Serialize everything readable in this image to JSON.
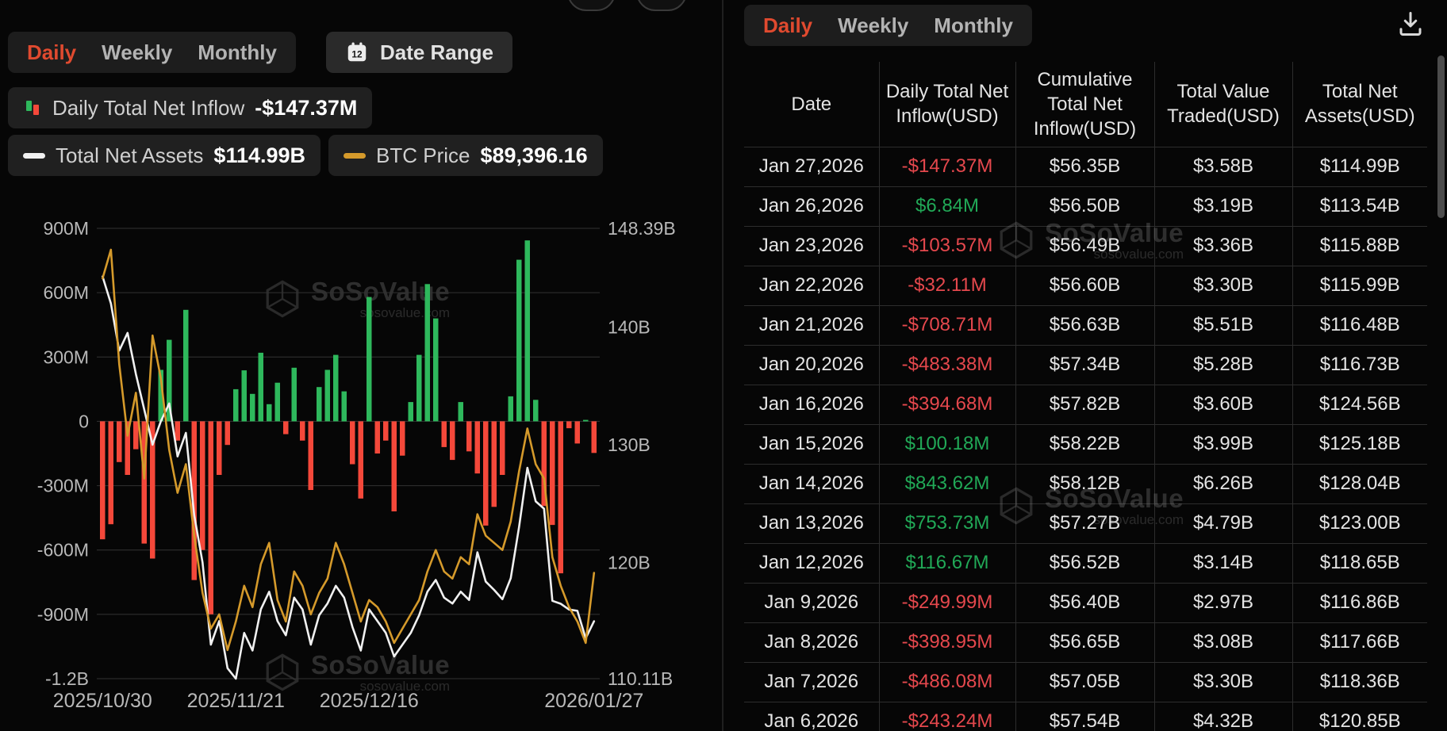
{
  "colors": {
    "accent_red": "#e04a2f",
    "positive_green": "#2eb85c",
    "negative_red": "#f4483a",
    "table_positive": "#21a957",
    "table_negative": "#e5484d",
    "btc_line": "#d59a2b",
    "assets_line": "#f0f0f0",
    "grid": "#333333",
    "axis_text": "#b8b8b8"
  },
  "left_panel": {
    "tabs": [
      {
        "label": "Daily",
        "active": true
      },
      {
        "label": "Weekly",
        "active": false
      },
      {
        "label": "Monthly",
        "active": false
      }
    ],
    "date_range": {
      "label": "Date Range",
      "icon": "calendar-icon"
    },
    "legend": {
      "inflow": {
        "icon": "bar-updown-icon",
        "label": "Daily Total Net Inflow",
        "value": "-$147.37M"
      },
      "assets": {
        "icon": "white-line-icon",
        "label": "Total Net Assets",
        "value": "$114.99B"
      },
      "btc": {
        "icon": "orange-line-icon",
        "label": "BTC Price",
        "value": "$89,396.16"
      }
    },
    "watermark": {
      "name": "SoSoValue",
      "domain": "sosovalue.com"
    }
  },
  "right_panel": {
    "tabs": [
      {
        "label": "Daily",
        "active": true
      },
      {
        "label": "Weekly",
        "active": false
      },
      {
        "label": "Monthly",
        "active": false
      }
    ],
    "download_icon": "download-icon",
    "table": {
      "headers": [
        "Date",
        "Daily Total Net Inflow(USD)",
        "Cumulative Total Net Inflow(USD)",
        "Total Value Traded(USD)",
        "Total Net Assets(USD)"
      ],
      "rows": [
        {
          "date": "Jan 27,2026",
          "daily_inflow": "-$147.37M",
          "cumulative_inflow": "$56.35B",
          "value_traded": "$3.58B",
          "net_assets": "$114.99B"
        },
        {
          "date": "Jan 26,2026",
          "daily_inflow": "$6.84M",
          "cumulative_inflow": "$56.50B",
          "value_traded": "$3.19B",
          "net_assets": "$113.54B"
        },
        {
          "date": "Jan 23,2026",
          "daily_inflow": "-$103.57M",
          "cumulative_inflow": "$56.49B",
          "value_traded": "$3.36B",
          "net_assets": "$115.88B"
        },
        {
          "date": "Jan 22,2026",
          "daily_inflow": "-$32.11M",
          "cumulative_inflow": "$56.60B",
          "value_traded": "$3.30B",
          "net_assets": "$115.99B"
        },
        {
          "date": "Jan 21,2026",
          "daily_inflow": "-$708.71M",
          "cumulative_inflow": "$56.63B",
          "value_traded": "$5.51B",
          "net_assets": "$116.48B"
        },
        {
          "date": "Jan 20,2026",
          "daily_inflow": "-$483.38M",
          "cumulative_inflow": "$57.34B",
          "value_traded": "$5.28B",
          "net_assets": "$116.73B"
        },
        {
          "date": "Jan 16,2026",
          "daily_inflow": "-$394.68M",
          "cumulative_inflow": "$57.82B",
          "value_traded": "$3.60B",
          "net_assets": "$124.56B"
        },
        {
          "date": "Jan 15,2026",
          "daily_inflow": "$100.18M",
          "cumulative_inflow": "$58.22B",
          "value_traded": "$3.99B",
          "net_assets": "$125.18B"
        },
        {
          "date": "Jan 14,2026",
          "daily_inflow": "$843.62M",
          "cumulative_inflow": "$58.12B",
          "value_traded": "$6.26B",
          "net_assets": "$128.04B"
        },
        {
          "date": "Jan 13,2026",
          "daily_inflow": "$753.73M",
          "cumulative_inflow": "$57.27B",
          "value_traded": "$4.79B",
          "net_assets": "$123.00B"
        },
        {
          "date": "Jan 12,2026",
          "daily_inflow": "$116.67M",
          "cumulative_inflow": "$56.52B",
          "value_traded": "$3.14B",
          "net_assets": "$118.65B"
        },
        {
          "date": "Jan 9,2026",
          "daily_inflow": "-$249.99M",
          "cumulative_inflow": "$56.40B",
          "value_traded": "$2.97B",
          "net_assets": "$116.86B"
        },
        {
          "date": "Jan 8,2026",
          "daily_inflow": "-$398.95M",
          "cumulative_inflow": "$56.65B",
          "value_traded": "$3.08B",
          "net_assets": "$117.66B"
        },
        {
          "date": "Jan 7,2026",
          "daily_inflow": "-$486.08M",
          "cumulative_inflow": "$57.05B",
          "value_traded": "$3.30B",
          "net_assets": "$118.36B"
        },
        {
          "date": "Jan 6,2026",
          "daily_inflow": "-$243.24M",
          "cumulative_inflow": "$57.54B",
          "value_traded": "$4.32B",
          "net_assets": "$120.85B"
        }
      ]
    }
  },
  "chart_data": {
    "type": "bar",
    "subtype": "combo-bar-two-lines",
    "x": [
      "2025/10/30",
      "2025/10/31",
      "2025/11/03",
      "2025/11/04",
      "2025/11/05",
      "2025/11/06",
      "2025/11/07",
      "2025/11/10",
      "2025/11/11",
      "2025/11/12",
      "2025/11/13",
      "2025/11/14",
      "2025/11/17",
      "2025/11/18",
      "2025/11/19",
      "2025/11/20",
      "2025/11/21",
      "2025/11/24",
      "2025/11/25",
      "2025/11/26",
      "2025/11/28",
      "2025/12/01",
      "2025/12/02",
      "2025/12/03",
      "2025/12/04",
      "2025/12/05",
      "2025/12/08",
      "2025/12/09",
      "2025/12/10",
      "2025/12/11",
      "2025/12/12",
      "2025/12/15",
      "2025/12/16",
      "2025/12/17",
      "2025/12/18",
      "2025/12/19",
      "2025/12/22",
      "2025/12/23",
      "2025/12/24",
      "2025/12/26",
      "2025/12/29",
      "2025/12/30",
      "2025/12/31",
      "2026/01/02",
      "2026/01/05",
      "2026/01/06",
      "2026/01/07",
      "2026/01/08",
      "2026/01/09",
      "2026/01/12",
      "2026/01/13",
      "2026/01/14",
      "2026/01/15",
      "2026/01/16",
      "2026/01/20",
      "2026/01/21",
      "2026/01/22",
      "2026/01/23",
      "2026/01/26",
      "2026/01/27"
    ],
    "x_ticks": [
      {
        "index": 0,
        "label": "2025/10/30"
      },
      {
        "index": 16,
        "label": "2025/11/21"
      },
      {
        "index": 32,
        "label": "2025/12/16"
      },
      {
        "index": 59,
        "label": "2026/01/27"
      }
    ],
    "left_axis": {
      "ticks": [
        "900M",
        "600M",
        "300M",
        "0",
        "-300M",
        "-600M",
        "-900M",
        "-1.2B"
      ],
      "tick_values_m": [
        900,
        600,
        300,
        0,
        -300,
        -600,
        -900,
        -1200
      ],
      "range_m": [
        -1200,
        900
      ]
    },
    "right_axis": {
      "ticks": [
        {
          "label": "148.39B",
          "value": 148.39
        },
        {
          "label": "140B",
          "value": 140
        },
        {
          "label": "130B",
          "value": 130
        },
        {
          "label": "120B",
          "value": 120
        },
        {
          "label": "110.11B",
          "value": 110.11
        }
      ],
      "range_b": [
        110.11,
        148.39
      ]
    },
    "series": [
      {
        "name": "Daily Total Net Inflow (USD, millions)",
        "type": "bar",
        "values": [
          -550,
          -480,
          -190,
          -250,
          -130,
          -570,
          -640,
          240,
          380,
          -90,
          520,
          -740,
          -600,
          -900,
          -250,
          -110,
          150,
          238,
          128,
          320,
          80,
          180,
          -60,
          250,
          -90,
          -320,
          160,
          240,
          310,
          140,
          -200,
          -360,
          580,
          -150,
          -90,
          -420,
          -160,
          90,
          310,
          640,
          480,
          -120,
          -180,
          90,
          -140,
          -243.24,
          -486.08,
          -398.95,
          -249.99,
          116.67,
          753.73,
          843.62,
          100.18,
          -394.68,
          -483.38,
          -708.71,
          -32.11,
          -103.57,
          6.84,
          -147.37
        ]
      },
      {
        "name": "Total Net Assets (USD, billions)",
        "type": "line",
        "color": "#f0f0f0",
        "values": [
          144.3,
          142,
          138,
          139.5,
          136,
          133,
          130,
          132,
          133.5,
          129,
          131,
          124,
          120,
          113,
          115,
          111,
          110.11,
          114,
          112.5,
          116,
          117.5,
          115,
          113.8,
          117,
          116,
          113,
          115.5,
          116.5,
          118,
          117,
          114.5,
          112.5,
          116,
          115,
          114,
          112,
          113,
          114,
          115.5,
          117.5,
          118.5,
          117,
          116.5,
          117.5,
          116.8,
          120.85,
          118.36,
          117.66,
          116.86,
          118.65,
          123,
          128.04,
          125.18,
          124.56,
          116.73,
          116.48,
          115.99,
          115.88,
          113.54,
          114.99
        ]
      },
      {
        "name": "BTC Price (USD)",
        "type": "line",
        "color": "#d59a2b",
        "axis_range": [
          82000,
          113500
        ],
        "values": [
          110000,
          112000,
          104000,
          99000,
          102000,
          96000,
          106000,
          103000,
          98000,
          95000,
          97000,
          92000,
          88000,
          85500,
          86500,
          84000,
          86000,
          88500,
          87000,
          90000,
          91500,
          87500,
          86000,
          89500,
          88500,
          86500,
          88000,
          89000,
          91500,
          90000,
          88000,
          86000,
          87500,
          87000,
          86000,
          84500,
          85500,
          86500,
          87500,
          89500,
          91000,
          89500,
          89000,
          90500,
          90000,
          93500,
          92000,
          91500,
          91000,
          93000,
          96500,
          99500,
          97000,
          96000,
          90500,
          88500,
          87000,
          86000,
          84500,
          89396.16
        ]
      }
    ]
  }
}
